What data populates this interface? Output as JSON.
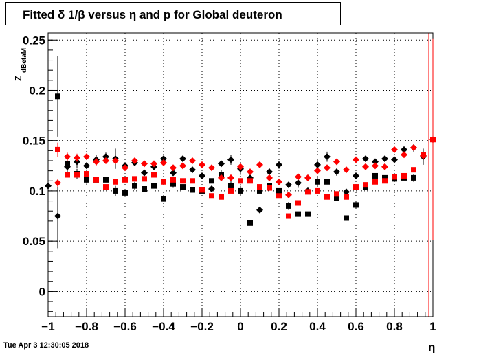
{
  "title": "Fitted δ 1/β versus η and p for Global deuteron",
  "timestamp": "Tue Apr  3 12:30:05 2018",
  "chart_data": {
    "type": "scatter",
    "title": "Fitted δ 1/β versus η and p for Global deuteron",
    "xlabel": "η",
    "ylabel": "Z",
    "ylabel_subscript": "dBetaM",
    "xlim": [
      -1,
      1
    ],
    "ylim": [
      -0.025,
      0.257
    ],
    "grid": true,
    "legend": "none",
    "x_ticks": [
      -1,
      -0.8,
      -0.6,
      -0.4,
      -0.2,
      0,
      0.2,
      0.4,
      0.6,
      0.8,
      1
    ],
    "x_tick_labels": [
      "−1",
      "−0.8",
      "−0.6",
      "−0.4",
      "−0.2",
      "0",
      "0.2",
      "0.4",
      "0.6",
      "0.8",
      "1"
    ],
    "y_ticks": [
      0,
      0.05,
      0.1,
      0.15,
      0.2,
      0.25
    ],
    "y_tick_labels": [
      "0",
      "0.05",
      "0.1",
      "0.15",
      "0.2",
      "0.25"
    ],
    "series": [
      {
        "marker": "diamond",
        "color": "#000000",
        "points": [
          [
            -1.0,
            0.105,
            0
          ],
          [
            -0.95,
            0.075,
            0.032
          ],
          [
            -0.9,
            0.124,
            0.009
          ],
          [
            -0.85,
            0.129,
            0.006
          ],
          [
            -0.8,
            0.125,
            0
          ],
          [
            -0.75,
            0.131,
            0.005
          ],
          [
            -0.7,
            0.134,
            0.004
          ],
          [
            -0.65,
            0.132,
            0.01
          ],
          [
            -0.6,
            0.125,
            0
          ],
          [
            -0.55,
            0.128,
            0
          ],
          [
            -0.5,
            0.118,
            0
          ],
          [
            -0.45,
            0.124,
            0
          ],
          [
            -0.4,
            0.132,
            0
          ],
          [
            -0.35,
            0.118,
            0
          ],
          [
            -0.3,
            0.132,
            0
          ],
          [
            -0.25,
            0.121,
            0
          ],
          [
            -0.2,
            0.115,
            0
          ],
          [
            -0.15,
            0.102,
            0
          ],
          [
            -0.1,
            0.127,
            0
          ],
          [
            -0.05,
            0.131,
            0.005
          ],
          [
            0.0,
            0.122,
            0.006
          ],
          [
            0.05,
            0.113,
            0
          ],
          [
            0.1,
            0.081,
            0
          ],
          [
            0.15,
            0.119,
            0.004
          ],
          [
            0.2,
            0.126,
            0.004
          ],
          [
            0.25,
            0.106,
            0
          ],
          [
            0.3,
            0.108,
            0.005
          ],
          [
            0.35,
            0.1,
            0
          ],
          [
            0.4,
            0.126,
            0.005
          ],
          [
            0.45,
            0.134,
            0.005
          ],
          [
            0.5,
            0.119,
            0.004
          ],
          [
            0.55,
            0.099,
            0
          ],
          [
            0.6,
            0.115,
            0
          ],
          [
            0.65,
            0.132,
            0
          ],
          [
            0.7,
            0.129,
            0
          ],
          [
            0.75,
            0.132,
            0
          ],
          [
            0.8,
            0.131,
            0
          ],
          [
            0.85,
            0.141,
            0
          ],
          [
            0.9,
            0.143,
            0.004
          ],
          [
            0.95,
            0.134,
            0.008
          ]
        ]
      },
      {
        "marker": "square",
        "color": "#000000",
        "points": [
          [
            -0.95,
            0.194,
            0.04
          ],
          [
            -0.9,
            0.127,
            0.005
          ],
          [
            -0.85,
            0.117,
            0.005
          ],
          [
            -0.8,
            0.111,
            0.004
          ],
          [
            -0.75,
            0.111,
            0
          ],
          [
            -0.7,
            0.111,
            0
          ],
          [
            -0.65,
            0.1,
            0.005
          ],
          [
            -0.6,
            0.098,
            0.004
          ],
          [
            -0.55,
            0.105,
            0.004
          ],
          [
            -0.5,
            0.102,
            0
          ],
          [
            -0.45,
            0.105,
            0
          ],
          [
            -0.4,
            0.092,
            0
          ],
          [
            -0.35,
            0.107,
            0.004
          ],
          [
            -0.3,
            0.104,
            0
          ],
          [
            -0.25,
            0.101,
            0
          ],
          [
            -0.2,
            0.1,
            0
          ],
          [
            -0.15,
            0.11,
            0
          ],
          [
            -0.1,
            0.116,
            0.005
          ],
          [
            -0.05,
            0.105,
            0.005
          ],
          [
            0.0,
            0.1,
            0.005
          ],
          [
            0.05,
            0.068,
            0
          ],
          [
            0.1,
            0.1,
            0
          ],
          [
            0.15,
            0.105,
            0
          ],
          [
            0.2,
            0.1,
            0
          ],
          [
            0.25,
            0.085,
            0.004
          ],
          [
            0.3,
            0.077,
            0
          ],
          [
            0.35,
            0.077,
            0
          ],
          [
            0.4,
            0.109,
            0.005
          ],
          [
            0.45,
            0.109,
            0
          ],
          [
            0.5,
            0.093,
            0
          ],
          [
            0.55,
            0.073,
            0
          ],
          [
            0.6,
            0.086,
            0.004
          ],
          [
            0.65,
            0.104,
            0
          ],
          [
            0.7,
            0.115,
            0
          ],
          [
            0.75,
            0.113,
            0
          ],
          [
            0.8,
            0.112,
            0
          ],
          [
            0.85,
            0.113,
            0
          ],
          [
            0.9,
            0.113,
            0.004
          ]
        ]
      },
      {
        "marker": "diamond",
        "color": "#ff0000",
        "points": [
          [
            -0.95,
            0.108,
            0.004
          ],
          [
            -0.9,
            0.134,
            0.004
          ],
          [
            -0.85,
            0.133,
            0.004
          ],
          [
            -0.8,
            0.134,
            0
          ],
          [
            -0.75,
            0.129,
            0.004
          ],
          [
            -0.7,
            0.13,
            0
          ],
          [
            -0.65,
            0.13,
            0
          ],
          [
            -0.6,
            0.123,
            0
          ],
          [
            -0.55,
            0.13,
            0
          ],
          [
            -0.5,
            0.127,
            0
          ],
          [
            -0.45,
            0.127,
            0
          ],
          [
            -0.4,
            0.128,
            0
          ],
          [
            -0.35,
            0.123,
            0
          ],
          [
            -0.3,
            0.125,
            0
          ],
          [
            -0.25,
            0.13,
            0
          ],
          [
            -0.2,
            0.126,
            0
          ],
          [
            -0.15,
            0.123,
            0
          ],
          [
            -0.1,
            0.113,
            0
          ],
          [
            -0.05,
            0.113,
            0
          ],
          [
            0.0,
            0.124,
            0
          ],
          [
            0.05,
            0.119,
            0
          ],
          [
            0.1,
            0.126,
            0
          ],
          [
            0.15,
            0.113,
            0
          ],
          [
            0.2,
            0.109,
            0
          ],
          [
            0.25,
            0.096,
            0
          ],
          [
            0.3,
            0.114,
            0
          ],
          [
            0.35,
            0.113,
            0
          ],
          [
            0.4,
            0.12,
            0
          ],
          [
            0.45,
            0.123,
            0
          ],
          [
            0.5,
            0.129,
            0
          ],
          [
            0.55,
            0.121,
            0
          ],
          [
            0.6,
            0.131,
            0
          ],
          [
            0.65,
            0.124,
            0
          ],
          [
            0.7,
            0.125,
            0
          ],
          [
            0.75,
            0.124,
            0
          ],
          [
            0.8,
            0.141,
            0
          ],
          [
            0.85,
            0.136,
            0
          ],
          [
            0.9,
            0.143,
            0
          ],
          [
            0.95,
            0.135,
            0
          ],
          [
            1.0,
            0.151,
            0
          ]
        ]
      },
      {
        "marker": "square",
        "color": "#ff0000",
        "points": [
          [
            -0.95,
            0.141,
            0.007
          ],
          [
            -0.9,
            0.116,
            0
          ],
          [
            -0.85,
            0.116,
            0
          ],
          [
            -0.8,
            0.117,
            0
          ],
          [
            -0.75,
            0.111,
            0
          ],
          [
            -0.7,
            0.104,
            0
          ],
          [
            -0.65,
            0.109,
            0
          ],
          [
            -0.6,
            0.111,
            0
          ],
          [
            -0.55,
            0.112,
            0
          ],
          [
            -0.5,
            0.112,
            0
          ],
          [
            -0.45,
            0.116,
            0
          ],
          [
            -0.4,
            0.109,
            0
          ],
          [
            -0.35,
            0.111,
            0
          ],
          [
            -0.3,
            0.11,
            0
          ],
          [
            -0.25,
            0.11,
            0
          ],
          [
            -0.2,
            0.101,
            0
          ],
          [
            -0.15,
            0.095,
            0
          ],
          [
            -0.1,
            0.094,
            0
          ],
          [
            -0.05,
            0.1,
            0
          ],
          [
            0.0,
            0.11,
            0
          ],
          [
            0.05,
            0.11,
            0
          ],
          [
            0.1,
            0.104,
            0
          ],
          [
            0.15,
            0.103,
            0
          ],
          [
            0.2,
            0.095,
            0
          ],
          [
            0.25,
            0.075,
            0
          ],
          [
            0.3,
            0.088,
            0
          ],
          [
            0.35,
            0.099,
            0
          ],
          [
            0.4,
            0.1,
            0
          ],
          [
            0.45,
            0.094,
            0
          ],
          [
            0.5,
            0.097,
            0
          ],
          [
            0.55,
            0.094,
            0
          ],
          [
            0.6,
            0.104,
            0
          ],
          [
            0.65,
            0.106,
            0
          ],
          [
            0.7,
            0.109,
            0
          ],
          [
            0.75,
            0.11,
            0
          ],
          [
            0.8,
            0.114,
            0
          ],
          [
            0.85,
            0.115,
            0
          ],
          [
            0.9,
            0.121,
            0
          ],
          [
            0.95,
            0.136,
            0
          ],
          [
            1.0,
            0.151,
            0.1
          ]
        ]
      }
    ]
  }
}
